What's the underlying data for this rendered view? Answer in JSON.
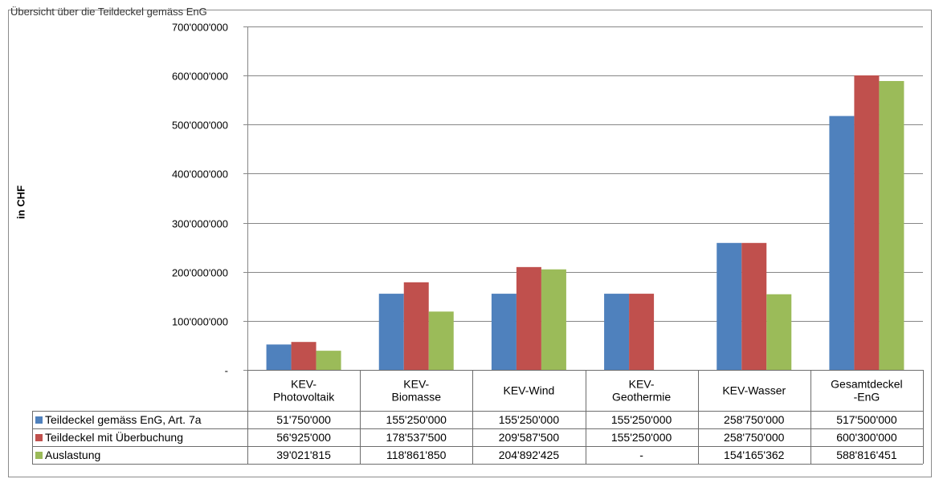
{
  "top_caption": "Übersicht über die Teildeckel gemäss EnG",
  "colors": {
    "s1": "#4f81bd",
    "s2": "#c0504d",
    "s3": "#9bbb59",
    "grid": "#868686"
  },
  "chart_data": {
    "type": "bar",
    "ylabel": "in CHF",
    "ylim": [
      0,
      700000000
    ],
    "yticks": [
      0,
      100000000,
      200000000,
      300000000,
      400000000,
      500000000,
      600000000,
      700000000
    ],
    "ytick_labels": [
      "-",
      "100'000'000",
      "200'000'000",
      "300'000'000",
      "400'000'000",
      "500'000'000",
      "600'000'000",
      "700'000'000"
    ],
    "grid": true,
    "legend": "data-table",
    "categories": [
      [
        "KEV-",
        "Photovoltaik"
      ],
      [
        "KEV-",
        "Biomasse"
      ],
      [
        "KEV-Wind"
      ],
      [
        "KEV-",
        "Geothermie"
      ],
      [
        "KEV-Wasser"
      ],
      [
        "Gesamtdeckel",
        "-EnG"
      ]
    ],
    "series": [
      {
        "name": "Teildeckel gemäss EnG, Art. 7a",
        "values": [
          51750000,
          155250000,
          155250000,
          155250000,
          258750000,
          517500000
        ],
        "labels": [
          "51'750'000",
          "155'250'000",
          "155'250'000",
          "155'250'000",
          "258'750'000",
          "517'500'000"
        ]
      },
      {
        "name": "Teildeckel mit Überbuchung",
        "values": [
          56925000,
          178537500,
          209587500,
          155250000,
          258750000,
          600300000
        ],
        "labels": [
          "56'925'000",
          "178'537'500",
          "209'587'500",
          "155'250'000",
          "258'750'000",
          "600'300'000"
        ]
      },
      {
        "name": "Auslastung",
        "values": [
          39021815,
          118861850,
          204892425,
          0,
          154165362,
          588816451
        ],
        "labels": [
          "39'021'815",
          "118'861'850",
          "204'892'425",
          "-",
          "154'165'362",
          "588'816'451"
        ]
      }
    ]
  }
}
